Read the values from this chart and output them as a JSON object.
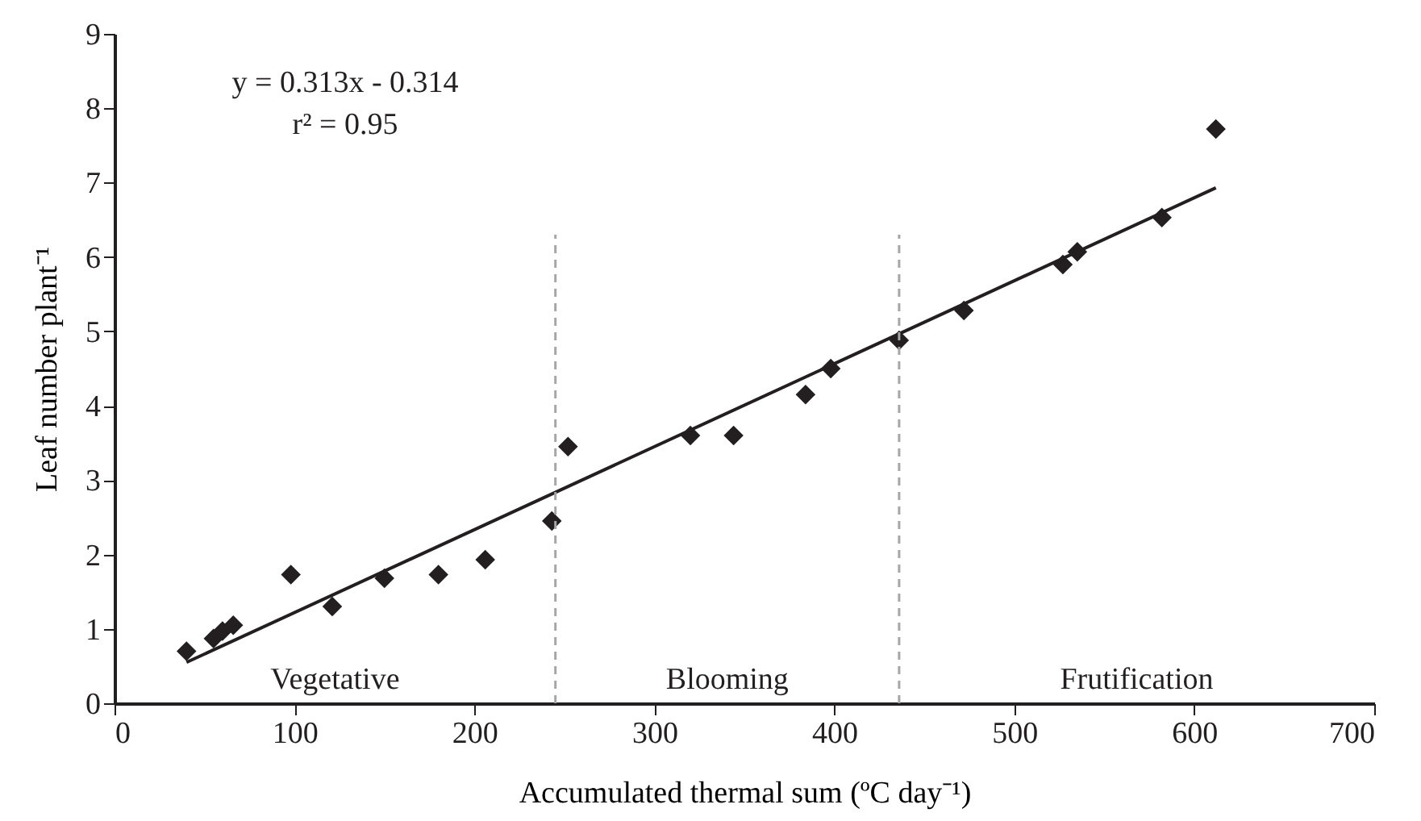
{
  "chart_data": {
    "type": "scatter",
    "xlabel": "Accumulated thermal sum (ºC day⁻¹)",
    "ylabel": "Leaf number plant⁻¹",
    "xlim": [
      0,
      700
    ],
    "xticks": [
      0,
      100,
      200,
      300,
      400,
      500,
      600,
      700
    ],
    "ylim": [
      0,
      9
    ],
    "yticks": [
      0,
      1,
      2,
      3,
      4,
      5,
      6,
      7,
      8,
      9
    ],
    "grid": false,
    "series": [
      {
        "color": "#231f20",
        "marker": "diamond",
        "x": [
          40,
          55,
          60,
          66,
          98,
          121,
          150,
          180,
          206,
          243,
          252,
          320,
          344,
          384,
          398,
          436,
          472,
          527,
          535,
          582,
          612
        ],
        "values": [
          0.7,
          0.87,
          0.97,
          1.05,
          1.73,
          1.3,
          1.68,
          1.73,
          1.93,
          2.45,
          3.45,
          3.6,
          3.6,
          4.15,
          4.5,
          4.88,
          5.28,
          5.9,
          6.07,
          6.53,
          7.72
        ]
      },
      {
        "type": "line",
        "color": "#231f20",
        "marker": "none",
        "line_style": "solid",
        "x": [
          40,
          612
        ],
        "values": [
          0.55,
          6.93
        ]
      }
    ],
    "ref_lines": [
      {
        "axis": "x",
        "value": 245,
        "color": "#a6a6a6",
        "line_style": "dashed"
      },
      {
        "axis": "x",
        "value": 436,
        "color": "#a6a6a6",
        "line_style": "dashed"
      }
    ],
    "annotations": [
      "y = 0.313x - 0.314",
      "r² = 0.95",
      "Vegetative",
      "Blooming",
      "Frutification"
    ]
  }
}
